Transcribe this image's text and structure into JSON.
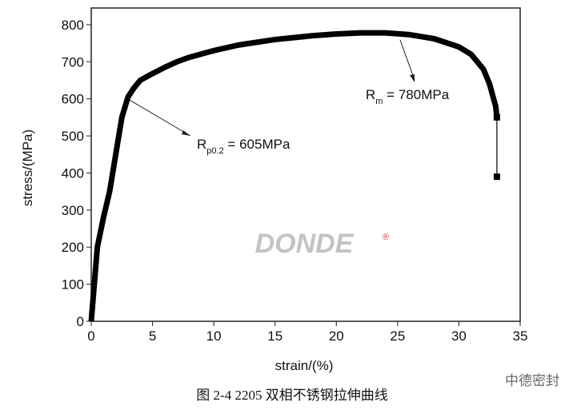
{
  "chart_data": {
    "type": "line",
    "x_label": "strain/(%)",
    "y_label": "stress/(MPa)",
    "caption": "图 2-4    2205 双相不锈钢拉伸曲线",
    "watermark": "DONDE",
    "watermark_mark": "®",
    "source_label": "中德密封",
    "xlim": [
      0,
      35
    ],
    "xticks": [
      0,
      5,
      10,
      15,
      20,
      25,
      30,
      35
    ],
    "ylim": [
      0,
      845
    ],
    "yticks": [
      0,
      100,
      200,
      300,
      400,
      500,
      600,
      700,
      800
    ],
    "series": [
      {
        "color": "#000000",
        "x": [
          0,
          0.5,
          1,
          1.5,
          2,
          2.5,
          3,
          3.5,
          4,
          5,
          6,
          7,
          8,
          10,
          12,
          15,
          18,
          20,
          22,
          24,
          26,
          28,
          30,
          31,
          32,
          32.5,
          33,
          33.1,
          33.1
        ],
        "values": [
          0,
          200,
          280,
          350,
          450,
          550,
          605,
          630,
          650,
          668,
          685,
          700,
          712,
          730,
          745,
          760,
          770,
          775,
          778,
          778,
          773,
          762,
          740,
          720,
          680,
          640,
          580,
          550,
          390
        ]
      }
    ],
    "annotations": [
      {
        "main": "R",
        "sub": "p0.2",
        "rest": " = 605MPa"
      },
      {
        "main": "R",
        "sub": "m",
        "rest": " = 780MPa"
      }
    ]
  }
}
